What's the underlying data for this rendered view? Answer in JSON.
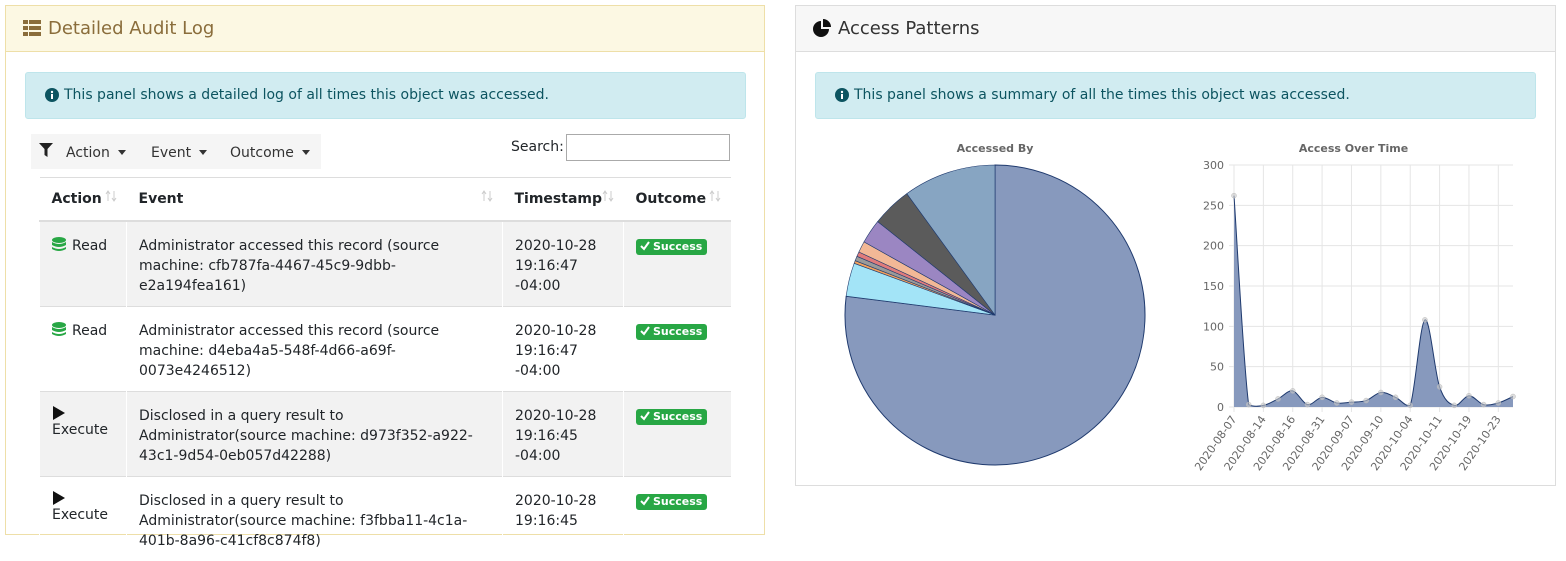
{
  "audit_panel": {
    "title": "Detailed Audit Log",
    "info": "This panel shows a detailed log of all times this object was accessed.",
    "filters": [
      "Action",
      "Event",
      "Outcome"
    ],
    "search_label": "Search:",
    "table": {
      "columns": [
        "Action",
        "Event",
        "Timestamp",
        "Outcome"
      ],
      "rows": [
        [
          "Read",
          "Administrator accessed this record (source machine: cfb787fa-4467-45c9-9dbb-e2a194fea161)",
          "2020-10-28 19:16:47 -04:00",
          "Success"
        ],
        [
          "Read",
          "Administrator accessed this record (source machine: d4eba4a5-548f-4d66-a69f-0073e4246512)",
          "2020-10-28 19:16:47 -04:00",
          "Success"
        ],
        [
          "Execute",
          "Disclosed in a query result to Administrator(source machine: d973f352-a922-43c1-9d54-0eb057d42288)",
          "2020-10-28 19:16:45 -04:00",
          "Success"
        ],
        [
          "Execute",
          "Disclosed in a query result to Administrator(source machine: f3fbba11-4c1a-401b-8a96-c41cf8c874f8)",
          "2020-10-28 19:16:45",
          "Success"
        ]
      ]
    }
  },
  "patterns_panel": {
    "title": "Access Patterns",
    "info": "This panel shows a summary of all the times this object was accessed."
  },
  "chart_data": [
    {
      "type": "pie",
      "title": "Accessed By",
      "categories": [
        null,
        null,
        null,
        null,
        null,
        null,
        null,
        null,
        null
      ],
      "values": [
        77,
        3.6,
        0.3,
        0.5,
        0.5,
        1.2,
        2.6,
        4.3,
        10
      ],
      "colors": [
        "#8799bd",
        "#a3e4f7",
        "#f2a05c",
        "#9a9a9a",
        "#e07b7b",
        "#f2b896",
        "#9b86c2",
        "#5b5b5b",
        "#87a5c2"
      ]
    },
    {
      "type": "area",
      "title": "Access Over Time",
      "categories": [
        "2020-08-07",
        null,
        "2020-08-14",
        null,
        "2020-08-16",
        null,
        "2020-08-31",
        null,
        "2020-09-07",
        null,
        "2020-09-10",
        null,
        "2020-10-04",
        null,
        "2020-10-11",
        null,
        "2020-10-19",
        null,
        "2020-10-23",
        null
      ],
      "values": [
        262,
        3,
        2,
        10,
        20,
        3,
        12,
        5,
        6,
        8,
        18,
        12,
        2,
        108,
        25,
        2,
        14,
        3,
        5,
        13
      ],
      "color": "#8799bd",
      "line_color": "#1f3a6e",
      "ylim": [
        0,
        300
      ],
      "yticks": [
        0,
        50,
        100,
        150,
        200,
        250,
        300
      ],
      "grid": true
    }
  ]
}
